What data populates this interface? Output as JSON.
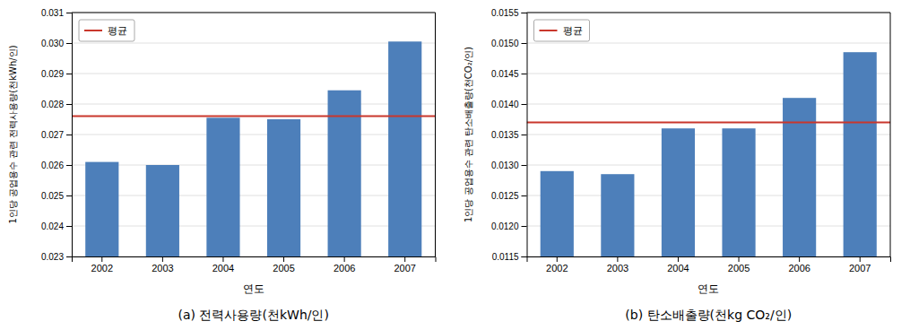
{
  "chart_data": [
    {
      "type": "bar",
      "title": "(a)  전력사용량(천kWh/인)",
      "x_label": "연도",
      "y_label": "1인당 공업용수 관련 전력사용량(천kWh/인)",
      "categories": [
        "2002",
        "2003",
        "2004",
        "2005",
        "2006",
        "2007"
      ],
      "values": [
        0.0261,
        0.026,
        0.02755,
        0.0275,
        0.02845,
        0.03005
      ],
      "color": "#4d7fba",
      "reference_lines": [
        {
          "name": "평균",
          "value": 0.0276,
          "color": "#c9372c"
        }
      ],
      "ylim": [
        0.023,
        0.031
      ],
      "yticks": [
        0.023,
        0.024,
        0.025,
        0.026,
        0.027,
        0.028,
        0.029,
        {
          "value": 0.03,
          "label": "0.030"
        },
        0.031
      ],
      "grid": true,
      "legend": "upper left"
    },
    {
      "type": "bar",
      "title": "(b)  탄소배출량(천kg CO₂/인)",
      "x_label": "연도",
      "y_label": "1인당 공업용수 관련 탄소배출량(천CO₂/인)",
      "categories": [
        "2002",
        "2003",
        "2004",
        "2005",
        "2006",
        "2007"
      ],
      "values": [
        0.0129,
        0.01285,
        0.0136,
        0.0136,
        0.0141,
        0.01485
      ],
      "color": "#4d7fba",
      "reference_lines": [
        {
          "name": "평균",
          "value": 0.0137,
          "color": "#c9372c"
        }
      ],
      "ylim": [
        0.0115,
        0.0155
      ],
      "yticks": [
        0.0115,
        {
          "value": 0.012,
          "label": "0.0120"
        },
        0.0125,
        {
          "value": 0.013,
          "label": "0.0130"
        },
        0.0135,
        {
          "value": 0.014,
          "label": "0.0140"
        },
        0.0145,
        {
          "value": 0.015,
          "label": "0.0150"
        },
        0.0155
      ],
      "grid": true,
      "legend": "upper left"
    }
  ]
}
